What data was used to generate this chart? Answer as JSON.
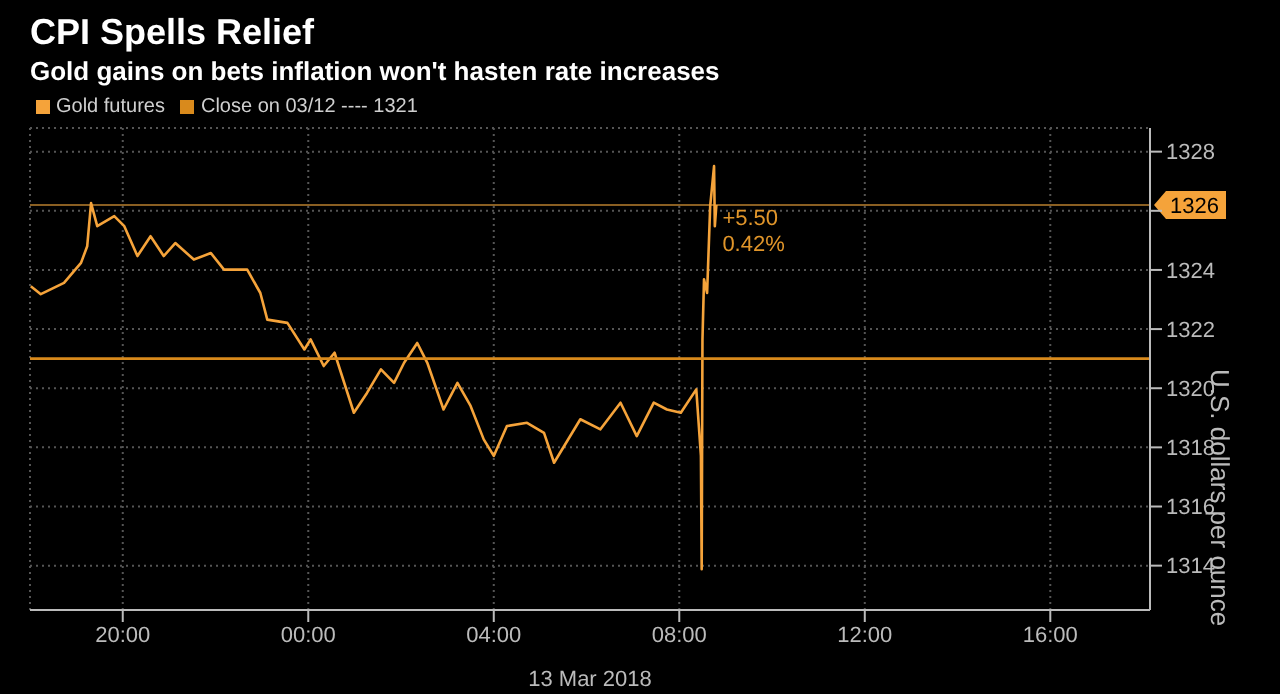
{
  "chart_data": {
    "type": "line",
    "title": "CPI Spells Relief",
    "subtitle": "Gold gains on bets inflation won't hasten rate increases",
    "xlabel": "13 Mar 2018",
    "ylabel": "U.S. dollars per ounce",
    "x": [
      "2018-03-12T18:01",
      "2018-03-12T18:14",
      "2018-03-12T18:44",
      "2018-03-12T19:06",
      "2018-03-12T19:14",
      "2018-03-12T19:19",
      "2018-03-12T19:27",
      "2018-03-12T19:49",
      "2018-03-12T20:02",
      "2018-03-12T20:19",
      "2018-03-12T20:36",
      "2018-03-12T20:53",
      "2018-03-12T21:08",
      "2018-03-12T21:32",
      "2018-03-12T21:54",
      "2018-03-12T22:11",
      "2018-03-12T22:41",
      "2018-03-12T22:58",
      "2018-03-12T23:07",
      "2018-03-12T23:33",
      "2018-03-12T23:55",
      "2018-03-13T00:03",
      "2018-03-13T00:20",
      "2018-03-13T00:34",
      "2018-03-13T00:59",
      "2018-03-13T01:16",
      "2018-03-13T01:34",
      "2018-03-13T01:51",
      "2018-03-13T02:04",
      "2018-03-13T02:21",
      "2018-03-13T02:34",
      "2018-03-13T02:55",
      "2018-03-13T03:13",
      "2018-03-13T03:30",
      "2018-03-13T03:47",
      "2018-03-13T04:00",
      "2018-03-13T04:17",
      "2018-03-13T04:43",
      "2018-03-13T05:05",
      "2018-03-13T05:18",
      "2018-03-13T05:52",
      "2018-03-13T06:18",
      "2018-03-13T06:44",
      "2018-03-13T07:05",
      "2018-03-13T07:27",
      "2018-03-13T07:44",
      "2018-03-13T08:02",
      "2018-03-13T08:22",
      "2018-03-13T08:28",
      "2018-03-13T08:29",
      "2018-03-13T08:30",
      "2018-03-13T08:32",
      "2018-03-13T08:36",
      "2018-03-13T08:40",
      "2018-03-13T08:45",
      "2018-03-13T08:46",
      "2018-03-13T08:48"
    ],
    "series": [
      {
        "name": "Gold futures",
        "color": "#f5a33a",
        "values": [
          1323.45,
          1323.18,
          1323.56,
          1324.24,
          1324.8,
          1326.26,
          1325.48,
          1325.82,
          1325.48,
          1324.47,
          1325.14,
          1324.47,
          1324.91,
          1324.35,
          1324.57,
          1324.01,
          1324.01,
          1323.22,
          1322.32,
          1322.21,
          1321.31,
          1321.65,
          1320.75,
          1321.2,
          1319.17,
          1319.84,
          1320.64,
          1320.18,
          1320.86,
          1321.53,
          1320.86,
          1319.28,
          1320.18,
          1319.4,
          1318.27,
          1317.71,
          1318.72,
          1318.83,
          1318.49,
          1317.48,
          1318.95,
          1318.61,
          1319.51,
          1318.38,
          1319.51,
          1319.28,
          1319.17,
          1319.96,
          1317.71,
          1313.88,
          1321.65,
          1323.68,
          1323.22,
          1326.16,
          1327.51,
          1325.48,
          1326.2
        ]
      },
      {
        "name": "Close on 03/12 ---- 1321",
        "color": "#d98a1c",
        "x": [
          "2018-03-12T18:00",
          "2018-03-13T18:09"
        ],
        "values": [
          1321,
          1321
        ]
      }
    ],
    "xlim": [
      "2018-03-12T18:00",
      "2018-03-13T18:09"
    ],
    "xticks": [
      {
        "value": "2018-03-12T20:00",
        "label": "20:00"
      },
      {
        "value": "2018-03-13T00:00",
        "label": "00:00"
      },
      {
        "value": "2018-03-13T04:00",
        "label": "04:00"
      },
      {
        "value": "2018-03-13T08:00",
        "label": "08:00"
      },
      {
        "value": "2018-03-13T12:00",
        "label": "12:00"
      },
      {
        "value": "2018-03-13T16:00",
        "label": "16:00"
      }
    ],
    "ylim": [
      1312.5,
      1328.8
    ],
    "yticks": [
      1314,
      1316,
      1318,
      1320,
      1322,
      1324,
      {
        "value": 1326,
        "label": null
      },
      1328
    ],
    "ref_lines": [
      {
        "axis": "y",
        "value": 1326.2,
        "label": "1326",
        "color": "#8a5f22"
      }
    ],
    "annotations": [
      {
        "text": "+5.50",
        "x": "2018-03-13T08:48",
        "y": 1326.2
      },
      {
        "text": "0.42%",
        "x": "2018-03-13T08:48",
        "y": 1326.2
      }
    ],
    "grid": true,
    "legend": "top left",
    "marker": "none",
    "line_style": "solid"
  }
}
